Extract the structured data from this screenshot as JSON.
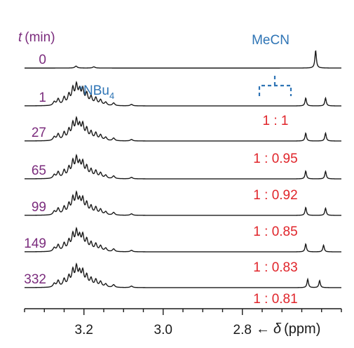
{
  "chart_data": {
    "type": "line",
    "title": "",
    "xlabel": "δ (ppm)",
    "xlabel_prefix": "←",
    "xlabel_symbol": "δ",
    "xlabel_unit": "(ppm)",
    "ylabel": "t (min)",
    "ylabel_var": "t",
    "ylabel_unit": "(min)",
    "x_direction": "decreasing",
    "x_range": [
      3.35,
      2.55
    ],
    "x_ticks": [
      3.2,
      3.0,
      2.8
    ],
    "x_tick_labels": [
      "3.2",
      "3.0",
      "2.8"
    ],
    "grid": false,
    "colors": {
      "trace": "#1a1a1a",
      "time": "#7b2c7d",
      "ratio": "#e0242a",
      "annotation": "#2e74b5"
    },
    "series": [
      {
        "name": "0",
        "ratio": "",
        "nbu4": "low",
        "peaks": [
          {
            "x": 2.615,
            "h": 1.0
          }
        ]
      },
      {
        "name": "1",
        "ratio": "",
        "nbu4": "high",
        "peaks": [
          {
            "x": 2.64,
            "h": 0.45
          },
          {
            "x": 2.59,
            "h": 0.45
          }
        ]
      },
      {
        "name": "27",
        "ratio": "1 : 1",
        "nbu4": "high",
        "peaks": [
          {
            "x": 2.64,
            "h": 0.45
          },
          {
            "x": 2.59,
            "h": 0.45
          }
        ]
      },
      {
        "name": "65",
        "ratio": "1 : 0.95",
        "nbu4": "high",
        "peaks": [
          {
            "x": 2.64,
            "h": 0.45
          },
          {
            "x": 2.59,
            "h": 0.43
          }
        ]
      },
      {
        "name": "99",
        "ratio": "1 : 0.92",
        "nbu4": "high",
        "peaks": [
          {
            "x": 2.64,
            "h": 0.45
          },
          {
            "x": 2.59,
            "h": 0.41
          }
        ]
      },
      {
        "name": "149",
        "ratio": "1 : 0.85",
        "nbu4": "high",
        "peaks": [
          {
            "x": 2.64,
            "h": 0.45
          },
          {
            "x": 2.595,
            "h": 0.38
          }
        ]
      },
      {
        "name": "332",
        "ratio": "1 : 0.83",
        "nbu4": "high",
        "peaks": [
          {
            "x": 2.635,
            "h": 0.48
          },
          {
            "x": 2.605,
            "h": 0.4
          }
        ]
      }
    ],
    "extra_ratio_label": "1 : 0.81",
    "annotations": [
      {
        "text_main": "MeCN",
        "target": "2.615 peak"
      },
      {
        "text_sup": "+",
        "text_main": "NBu",
        "text_sub": "4",
        "target": "3.2 multiplet"
      }
    ]
  }
}
